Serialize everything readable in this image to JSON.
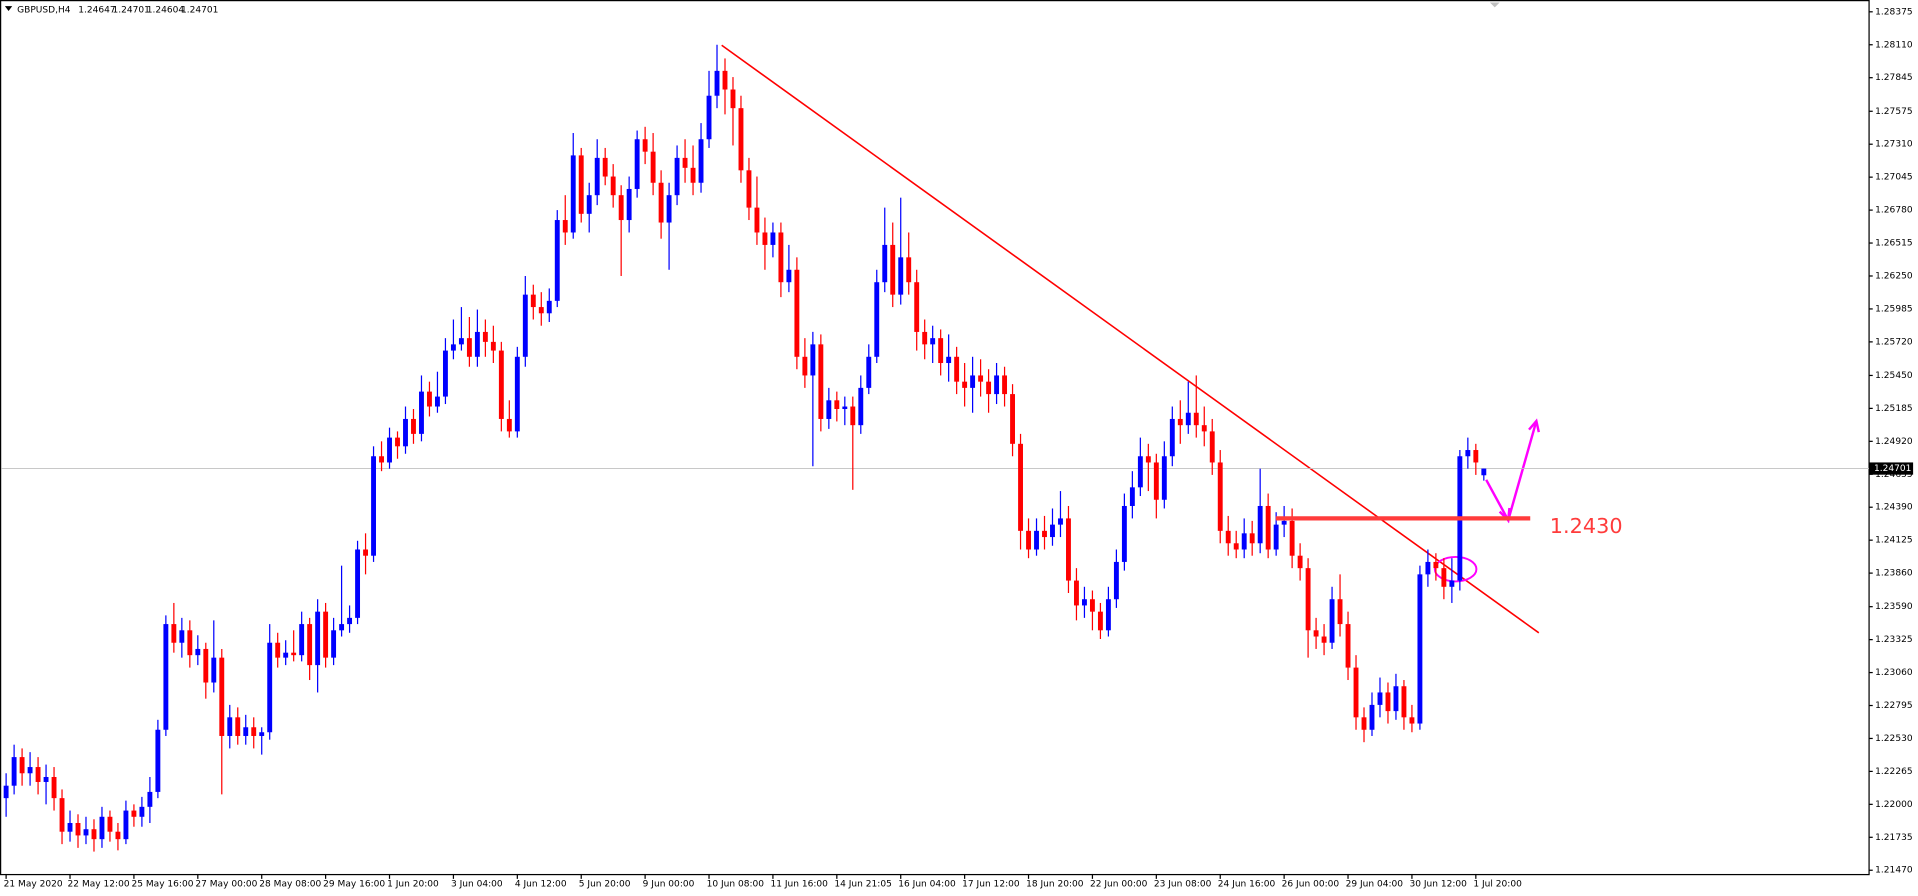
{
  "chart_data": {
    "type": "candlestick",
    "symbol": "GBPUSD,H4",
    "categories": [
      "21 May 2020",
      null,
      null,
      null,
      null,
      null,
      null,
      null,
      "22 May 12:00",
      null,
      null,
      null,
      null,
      null,
      null,
      null,
      "25 May 16:00",
      null,
      null,
      null,
      null,
      null,
      null,
      null,
      "27 May 00:00",
      null,
      null,
      null,
      null,
      null,
      null,
      null,
      "28 May 08:00",
      null,
      null,
      null,
      null,
      null,
      null,
      null,
      "29 May 16:00",
      null,
      null,
      null,
      null,
      null,
      null,
      null,
      "1 Jun 20:00",
      null,
      null,
      null,
      null,
      null,
      null,
      null,
      "3 Jun 04:00",
      null,
      null,
      null,
      null,
      null,
      null,
      null,
      "4 Jun 12:00",
      null,
      null,
      null,
      null,
      null,
      null,
      null,
      "5 Jun 20:00",
      null,
      null,
      null,
      null,
      null,
      null,
      null,
      "9 Jun 00:00",
      null,
      null,
      null,
      null,
      null,
      null,
      null,
      "10 Jun 08:00",
      null,
      null,
      null,
      null,
      null,
      null,
      null,
      "11 Jun 16:00",
      null,
      null,
      null,
      null,
      null,
      null,
      null,
      "14 Jun 21:05",
      null,
      null,
      null,
      null,
      null,
      null,
      null,
      "16 Jun 04:00",
      null,
      null,
      null,
      null,
      null,
      null,
      null,
      "17 Jun 12:00",
      null,
      null,
      null,
      null,
      null,
      null,
      null,
      "18 Jun 20:00",
      null,
      null,
      null,
      null,
      null,
      null,
      null,
      "22 Jun 00:00",
      null,
      null,
      null,
      null,
      null,
      null,
      null,
      "23 Jun 08:00",
      null,
      null,
      null,
      null,
      null,
      null,
      null,
      "24 Jun 16:00",
      null,
      null,
      null,
      null,
      null,
      null,
      null,
      "26 Jun 00:00",
      null,
      null,
      null,
      null,
      null,
      null,
      null,
      "29 Jun 04:00",
      null,
      null,
      null,
      null,
      null,
      null,
      null,
      "30 Jun 12:00",
      null,
      null,
      null,
      null,
      null,
      null,
      null,
      "1 Jul 20:00",
      null
    ],
    "open": [
      1.2205,
      1.2215,
      1.2238,
      1.2225,
      1.223,
      1.2218,
      1.2222,
      1.2205,
      1.2178,
      1.2185,
      1.2175,
      1.218,
      1.2172,
      1.219,
      1.2178,
      1.2172,
      1.2195,
      1.219,
      1.2198,
      1.221,
      1.226,
      1.2345,
      1.233,
      1.234,
      1.232,
      1.2325,
      1.2298,
      1.2318,
      1.2255,
      1.227,
      1.2255,
      1.2262,
      1.2255,
      1.2258,
      1.233,
      1.2318,
      1.2322,
      1.232,
      1.2345,
      1.2312,
      1.2355,
      1.2318,
      1.234,
      1.2345,
      1.235,
      1.2405,
      1.24,
      1.248,
      1.2475,
      1.2495,
      1.2488,
      1.251,
      1.2498,
      1.2532,
      1.252,
      1.2528,
      1.2565,
      1.257,
      1.2575,
      1.256,
      1.258,
      1.2572,
      1.2565,
      1.251,
      1.25,
      1.256,
      1.261,
      1.26,
      1.2595,
      1.2605,
      1.267,
      1.266,
      1.2722,
      1.2675,
      1.269,
      1.272,
      1.2705,
      1.269,
      1.267,
      1.2695,
      1.2735,
      1.2725,
      1.27,
      1.2668,
      1.269,
      1.272,
      1.2712,
      1.27,
      1.2735,
      1.277,
      1.279,
      1.2775,
      1.276,
      1.271,
      1.268,
      1.266,
      1.265,
      1.266,
      1.262,
      1.263,
      1.256,
      1.2545,
      1.257,
      1.251,
      1.2525,
      1.2518,
      1.252,
      1.2505,
      1.2535,
      1.256,
      1.262,
      1.265,
      1.261,
      1.264,
      1.262,
      1.258,
      1.257,
      1.2575,
      1.2555,
      1.256,
      1.254,
      1.2535,
      1.2545,
      1.254,
      1.253,
      1.2545,
      1.253,
      1.249,
      1.242,
      1.2405,
      1.242,
      1.2415,
      1.2425,
      1.243,
      1.238,
      1.236,
      1.2365,
      1.2355,
      1.234,
      1.2365,
      1.2395,
      1.244,
      1.2455,
      1.248,
      1.2475,
      1.2445,
      1.248,
      1.251,
      1.2505,
      1.2515,
      1.2505,
      1.25,
      1.2475,
      1.242,
      1.241,
      1.2405,
      1.2418,
      1.241,
      1.244,
      1.2405,
      1.2425,
      1.2428,
      1.24,
      1.239,
      1.234,
      1.2335,
      1.233,
      1.2365,
      1.2345,
      1.231,
      1.227,
      1.226,
      1.228,
      1.229,
      1.2275,
      1.2295,
      1.227,
      1.2265,
      1.2385,
      1.2395,
      1.239,
      1.2375,
      1.238,
      1.248,
      1.2485,
      1.24647
    ],
    "high": [
      1.2225,
      1.2248,
      1.2245,
      1.2242,
      1.2238,
      1.2232,
      1.223,
      1.2212,
      1.2195,
      1.2192,
      1.219,
      1.2188,
      1.2198,
      1.2195,
      1.2185,
      1.2203,
      1.22,
      1.2206,
      1.2222,
      1.2268,
      1.2352,
      1.2362,
      1.235,
      1.2348,
      1.2336,
      1.233,
      1.2348,
      1.2325,
      1.228,
      1.2278,
      1.2272,
      1.227,
      1.2262,
      1.2345,
      1.2338,
      1.2332,
      1.234,
      1.2355,
      1.235,
      1.2365,
      1.2362,
      1.235,
      1.2392,
      1.236,
      1.2412,
      1.2418,
      1.2488,
      1.2492,
      1.2503,
      1.25,
      1.252,
      1.2518,
      1.2545,
      1.254,
      1.2548,
      1.2575,
      1.259,
      1.26,
      1.2592,
      1.2598,
      1.259,
      1.2585,
      1.2572,
      1.2525,
      1.2568,
      1.2625,
      1.2618,
      1.2612,
      1.2615,
      1.2678,
      1.269,
      1.274,
      1.2728,
      1.27,
      1.2735,
      1.2728,
      1.2715,
      1.2698,
      1.2705,
      1.2742,
      1.2745,
      1.274,
      1.271,
      1.27,
      1.273,
      1.2735,
      1.273,
      1.2748,
      1.279,
      1.2811,
      1.28,
      1.2785,
      1.277,
      1.272,
      1.2705,
      1.2672,
      1.2668,
      1.2668,
      1.265,
      1.264,
      1.2575,
      1.258,
      1.2578,
      1.2535,
      1.2532,
      1.2528,
      1.2528,
      1.2545,
      1.257,
      1.263,
      1.268,
      1.2668,
      1.2688,
      1.266,
      1.263,
      1.259,
      1.2585,
      1.2582,
      1.2578,
      1.2568,
      1.2555,
      1.256,
      1.2558,
      1.255,
      1.2555,
      1.2552,
      1.2538,
      1.2498,
      1.243,
      1.243,
      1.2432,
      1.2438,
      1.2452,
      1.244,
      1.239,
      1.2375,
      1.2372,
      1.2362,
      1.2375,
      1.2405,
      1.245,
      1.2468,
      1.2495,
      1.249,
      1.2482,
      1.2492,
      1.252,
      1.2525,
      1.254,
      1.2545,
      1.252,
      1.251,
      1.2485,
      1.2432,
      1.242,
      1.243,
      1.2428,
      1.247,
      1.245,
      1.2435,
      1.244,
      1.2438,
      1.241,
      1.2398,
      1.235,
      1.2345,
      1.2375,
      1.2385,
      1.2355,
      1.232,
      1.2278,
      1.229,
      1.2302,
      1.2298,
      1.2305,
      1.23,
      1.228,
      1.2392,
      1.2405,
      1.2402,
      1.2398,
      1.2398,
      1.2485,
      1.2495,
      1.249,
      1.24701
    ],
    "low": [
      1.219,
      1.2208,
      1.2215,
      1.2215,
      1.2208,
      1.22,
      1.2195,
      1.2168,
      1.217,
      1.2165,
      1.2168,
      1.2162,
      1.2165,
      1.217,
      1.2163,
      1.2168,
      1.2182,
      1.2182,
      1.2185,
      1.2205,
      1.2255,
      1.2322,
      1.2318,
      1.231,
      1.2312,
      1.2285,
      1.229,
      1.2208,
      1.2245,
      1.2248,
      1.2248,
      1.2245,
      1.224,
      1.2252,
      1.231,
      1.2312,
      1.2315,
      1.2315,
      1.23,
      1.229,
      1.231,
      1.2312,
      1.2335,
      1.2338,
      1.2345,
      1.2385,
      1.2395,
      1.2468,
      1.247,
      1.2478,
      1.2482,
      1.249,
      1.2492,
      1.2512,
      1.2515,
      1.2522,
      1.2558,
      1.2565,
      1.2552,
      1.2552,
      1.256,
      1.2555,
      1.25,
      1.2495,
      1.2495,
      1.2552,
      1.259,
      1.2585,
      1.2588,
      1.26,
      1.265,
      1.2655,
      1.2668,
      1.266,
      1.2682,
      1.2698,
      1.268,
      1.2625,
      1.266,
      1.2688,
      1.2715,
      1.269,
      1.2655,
      1.263,
      1.2682,
      1.27,
      1.269,
      1.2692,
      1.2728,
      1.276,
      1.2755,
      1.273,
      1.27,
      1.267,
      1.265,
      1.263,
      1.264,
      1.2608,
      1.2612,
      1.255,
      1.2535,
      1.2472,
      1.25,
      1.2502,
      1.2508,
      1.2505,
      1.2453,
      1.2498,
      1.253,
      1.2555,
      1.2612,
      1.26,
      1.2602,
      1.261,
      1.2565,
      1.2558,
      1.2555,
      1.2545,
      1.254,
      1.253,
      1.252,
      1.2515,
      1.2528,
      1.2515,
      1.2522,
      1.252,
      1.248,
      1.2405,
      1.2398,
      1.24,
      1.2405,
      1.2408,
      1.2415,
      1.237,
      1.2348,
      1.235,
      1.234,
      1.2333,
      1.2335,
      1.2358,
      1.2388,
      1.243,
      1.2448,
      1.2452,
      1.243,
      1.2438,
      1.2472,
      1.249,
      1.2498,
      1.2495,
      1.2488,
      1.2465,
      1.241,
      1.24,
      1.2398,
      1.2398,
      1.24,
      1.2402,
      1.2398,
      1.24,
      1.2415,
      1.239,
      1.238,
      1.2318,
      1.2325,
      1.232,
      1.2325,
      1.2335,
      1.23,
      1.226,
      1.225,
      1.2255,
      1.227,
      1.2265,
      1.2268,
      1.226,
      1.2258,
      1.226,
      1.2375,
      1.238,
      1.2365,
      1.2362,
      1.2372,
      1.247,
      1.2465,
      1.24604
    ],
    "close": [
      1.2215,
      1.2238,
      1.2225,
      1.223,
      1.2218,
      1.2222,
      1.2205,
      1.2178,
      1.2185,
      1.2175,
      1.218,
      1.2172,
      1.219,
      1.2178,
      1.2172,
      1.2195,
      1.219,
      1.2198,
      1.221,
      1.226,
      1.2345,
      1.233,
      1.234,
      1.232,
      1.2325,
      1.2298,
      1.2318,
      1.2255,
      1.227,
      1.2255,
      1.2262,
      1.2255,
      1.2258,
      1.233,
      1.2318,
      1.2322,
      1.232,
      1.2345,
      1.2312,
      1.2355,
      1.2318,
      1.234,
      1.2345,
      1.235,
      1.2405,
      1.24,
      1.248,
      1.2475,
      1.2495,
      1.2488,
      1.251,
      1.2498,
      1.2532,
      1.252,
      1.2528,
      1.2565,
      1.257,
      1.2575,
      1.256,
      1.258,
      1.2572,
      1.2565,
      1.251,
      1.25,
      1.256,
      1.261,
      1.26,
      1.2595,
      1.2605,
      1.267,
      1.266,
      1.2722,
      1.2675,
      1.269,
      1.272,
      1.2705,
      1.269,
      1.267,
      1.2695,
      1.2735,
      1.2725,
      1.27,
      1.2668,
      1.269,
      1.272,
      1.2712,
      1.27,
      1.2735,
      1.277,
      1.279,
      1.2775,
      1.276,
      1.271,
      1.268,
      1.266,
      1.265,
      1.266,
      1.262,
      1.263,
      1.256,
      1.2545,
      1.257,
      1.251,
      1.2525,
      1.2518,
      1.252,
      1.2505,
      1.2535,
      1.256,
      1.262,
      1.265,
      1.261,
      1.264,
      1.262,
      1.258,
      1.257,
      1.2575,
      1.2555,
      1.256,
      1.254,
      1.2535,
      1.2545,
      1.254,
      1.253,
      1.2545,
      1.253,
      1.249,
      1.242,
      1.2405,
      1.242,
      1.2415,
      1.2425,
      1.243,
      1.238,
      1.236,
      1.2365,
      1.2355,
      1.234,
      1.2365,
      1.2395,
      1.244,
      1.2455,
      1.248,
      1.2475,
      1.2445,
      1.248,
      1.251,
      1.2505,
      1.2515,
      1.2505,
      1.25,
      1.2475,
      1.242,
      1.241,
      1.2405,
      1.2418,
      1.241,
      1.244,
      1.2405,
      1.2425,
      1.2428,
      1.24,
      1.239,
      1.234,
      1.2335,
      1.233,
      1.2365,
      1.2345,
      1.231,
      1.227,
      1.226,
      1.228,
      1.229,
      1.2275,
      1.2295,
      1.227,
      1.2265,
      1.2385,
      1.2395,
      1.239,
      1.2375,
      1.238,
      1.248,
      1.2485,
      1.2475,
      1.24701
    ],
    "up_color": "#0000ff",
    "down_color": "#ff0000",
    "ylim": [
      1.2144,
      1.2847
    ],
    "yticks": [
      {
        "value": 1.2147,
        "label": "1.21470"
      },
      {
        "value": 1.21735,
        "label": "1.21735"
      },
      {
        "value": 1.22,
        "label": "1.22000"
      },
      {
        "value": 1.22265,
        "label": "1.22265"
      },
      {
        "value": 1.2253,
        "label": "1.22530"
      },
      {
        "value": 1.22795,
        "label": "1.22795"
      },
      {
        "value": 1.2306,
        "label": "1.23060"
      },
      {
        "value": 1.23325,
        "label": "1.23325"
      },
      {
        "value": 1.2359,
        "label": "1.23590"
      },
      {
        "value": 1.2386,
        "label": "1.23860"
      },
      {
        "value": 1.24125,
        "label": "1.24125"
      },
      {
        "value": 1.2439,
        "label": "1.24390"
      },
      {
        "value": 1.24655,
        "label": "1.24655"
      },
      {
        "value": 1.2492,
        "label": "1.24920"
      },
      {
        "value": 1.25185,
        "label": "1.25185"
      },
      {
        "value": 1.2545,
        "label": "1.25450"
      },
      {
        "value": 1.2572,
        "label": "1.25720"
      },
      {
        "value": 1.25985,
        "label": "1.25985"
      },
      {
        "value": 1.2625,
        "label": "1.26250"
      },
      {
        "value": 1.26515,
        "label": "1.26515"
      },
      {
        "value": 1.2678,
        "label": "1.26780"
      },
      {
        "value": 1.27045,
        "label": "1.27045"
      },
      {
        "value": 1.2731,
        "label": "1.27310"
      },
      {
        "value": 1.27575,
        "label": "1.27575"
      },
      {
        "value": 1.27845,
        "label": "1.27845"
      },
      {
        "value": 1.2811,
        "label": "1.28110"
      },
      {
        "value": 1.28375,
        "label": "1.28375"
      }
    ],
    "level": {
      "value": 1.243,
      "label": "1.2430",
      "color": "#ff3b3b"
    }
  }
}
